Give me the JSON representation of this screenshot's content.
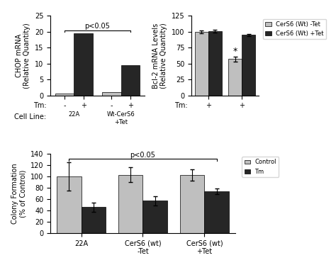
{
  "chart_data": [
    {
      "type": "bar",
      "ylabel": "CHOP mRNA\n(Relative Quantity)",
      "categories": [
        "22A",
        "Wt-CerS6\n+Tet"
      ],
      "category_title": "Cell Line:",
      "series_title": "Tm:",
      "series": [
        {
          "name": "-",
          "color": "#bfbfbf",
          "values": [
            0.5,
            1.0
          ]
        },
        {
          "name": "+",
          "color": "#262626",
          "values": [
            19.5,
            9.5
          ]
        }
      ],
      "ylim": [
        0,
        25
      ],
      "yticks": [
        0,
        5,
        10,
        15,
        20,
        25
      ],
      "annotations": [
        {
          "text": "p<0.05",
          "type": "bracket"
        }
      ]
    },
    {
      "type": "bar",
      "ylabel": "Bcl-2 mRNA Levels\n(Relative Quantity)",
      "categories": [
        "+",
        "+"
      ],
      "category_title": "Tm:",
      "series": [
        {
          "name": "CerS6 (Wt) -Tet",
          "color": "#bfbfbf",
          "values": [
            100,
            57
          ],
          "errors": [
            2,
            4
          ]
        },
        {
          "name": "CerS6 (Wt) +Tet",
          "color": "#262626",
          "values": [
            101,
            95
          ],
          "errors": [
            2,
            2
          ]
        }
      ],
      "ylim": [
        0,
        125
      ],
      "yticks": [
        0,
        25,
        50,
        75,
        100,
        125
      ],
      "legend": "upper right",
      "annotations": [
        {
          "text": "*",
          "series": 0,
          "index": 1
        }
      ]
    },
    {
      "type": "bar",
      "ylabel": "Colony Formation\n(% of Control)",
      "categories": [
        "22A",
        "CerS6 (wt)\n-Tet",
        "CerS6 (wt)\n+Tet"
      ],
      "series": [
        {
          "name": "Control",
          "color": "#bfbfbf",
          "values": [
            100,
            103,
            102
          ],
          "errors": [
            25,
            13,
            10
          ]
        },
        {
          "name": "Tm",
          "color": "#262626",
          "values": [
            46,
            57,
            74
          ],
          "errors": [
            8,
            8,
            5
          ]
        }
      ],
      "ylim": [
        0,
        140
      ],
      "yticks": [
        0,
        20,
        40,
        60,
        80,
        100,
        120,
        140
      ],
      "legend": "upper right",
      "annotations": [
        {
          "text": "p<0.05",
          "type": "bracket"
        }
      ]
    }
  ]
}
